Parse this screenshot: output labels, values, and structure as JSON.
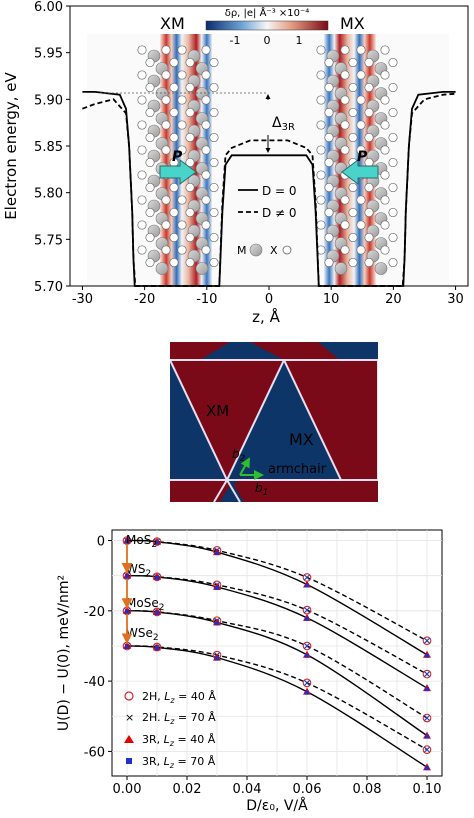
{
  "panel_a": {
    "label_left": "XM",
    "label_right": "MX",
    "colorbar_label": "δρ, |e| Å⁻³ ×10⁻⁴",
    "colorbar_ticks": [
      "-1",
      "0",
      "1"
    ],
    "ylabel": "Electron energy, eV",
    "xlabel": "z, Å",
    "y_ticks": [
      "5.70",
      "5.75",
      "5.80",
      "5.85",
      "5.90",
      "5.95",
      "6.00"
    ],
    "x_ticks": [
      "-30",
      "-20",
      "-10",
      "0",
      "10",
      "20",
      "30"
    ],
    "legend": [
      "D = 0",
      "D ≠ 0"
    ],
    "delta_label": "Δ",
    "delta_sub": "3R",
    "p_label": "P",
    "atom_legend_m": "M",
    "atom_legend_x": "X"
  },
  "panel_b": {
    "label_xm": "XM",
    "label_mx": "MX",
    "label_armchair": "armchair",
    "b1": "b",
    "b1_sub": "1",
    "b2": "b",
    "b2_sub": "2",
    "colors": {
      "dark_red": "#7a0a17",
      "dark_blue": "#0d3567"
    }
  },
  "chart_data": [
    {
      "type": "line",
      "title": "",
      "xlabel": "z, Å",
      "ylabel": "Electron energy, eV",
      "xlim": [
        -32,
        32
      ],
      "ylim": [
        5.7,
        6.0
      ],
      "series": [
        {
          "name": "D = 0",
          "style": "solid",
          "x": [
            -30,
            -28,
            -24,
            -23,
            -22.5,
            -22,
            -21.8,
            -21.6,
            -21.5,
            -8,
            -7.5,
            -7,
            -6,
            6,
            7,
            7.5,
            8,
            21.5,
            21.6,
            21.8,
            22,
            22.5,
            23,
            24,
            28,
            30
          ],
          "y": [
            5.908,
            5.908,
            5.905,
            5.89,
            5.85,
            5.78,
            5.73,
            5.7,
            5.7,
            5.7,
            5.78,
            5.83,
            5.84,
            5.84,
            5.83,
            5.78,
            5.7,
            5.7,
            5.7,
            5.73,
            5.78,
            5.85,
            5.89,
            5.905,
            5.908,
            5.908
          ]
        },
        {
          "name": "D ≠ 0",
          "style": "dashed",
          "x": [
            -30,
            -28,
            -25,
            -23,
            -22.5,
            -22,
            -21.8,
            -21.5,
            -8,
            -7.5,
            -7,
            -6,
            -3,
            3,
            6,
            7,
            7.5,
            8,
            21.5,
            21.8,
            22,
            22.5,
            23,
            25,
            28,
            30
          ],
          "y": [
            5.89,
            5.895,
            5.9,
            5.885,
            5.85,
            5.78,
            5.73,
            5.7,
            5.7,
            5.79,
            5.84,
            5.848,
            5.856,
            5.856,
            5.848,
            5.84,
            5.79,
            5.7,
            5.7,
            5.73,
            5.78,
            5.85,
            5.885,
            5.9,
            5.905,
            5.906
          ]
        }
      ]
    },
    {
      "type": "line",
      "title": "",
      "xlabel": "D/ε₀,  V/Å",
      "ylabel": "U(D) − U(0),  meV/nm²",
      "xlim": [
        -0.005,
        0.105
      ],
      "ylim": [
        -67,
        3
      ],
      "x_ticks": [
        "0.00",
        "0.02",
        "0.04",
        "0.06",
        "0.08",
        "0.10"
      ],
      "y_ticks": [
        "0",
        "-20",
        "-40",
        "-60"
      ],
      "material_labels": [
        {
          "base": "MoS",
          "sub": "2"
        },
        {
          "base": "WS",
          "sub": "2"
        },
        {
          "base": "MoSe",
          "sub": "2"
        },
        {
          "base": "WSe",
          "sub": "2"
        }
      ],
      "legend": [
        "2H, L_z = 40 Å",
        "2H. L_z = 70 Å",
        "3R, L_z = 40 Å",
        "3R, L_z = 70 Å"
      ],
      "legend_parts": [
        {
          "a": "2H, ",
          "L": "L",
          "z": "z",
          "b": " = 40 Å"
        },
        {
          "a": "2H. ",
          "L": "L",
          "z": "z",
          "b": " = 70 Å"
        },
        {
          "a": "3R, ",
          "L": "L",
          "z": "z",
          "b": " = 40 Å"
        },
        {
          "a": "3R, ",
          "L": "L",
          "z": "z",
          "b": " = 70 Å"
        }
      ],
      "x": [
        0.0,
        0.01,
        0.03,
        0.06,
        0.1
      ],
      "series": [
        {
          "name": "MoS2 2H",
          "values": [
            0,
            -0.3,
            -2.8,
            -10.5,
            -28.5
          ]
        },
        {
          "name": "MoS2 3R",
          "values": [
            0,
            -0.35,
            -3.3,
            -12.5,
            -32.5
          ]
        },
        {
          "name": "WS2 2H",
          "values": [
            -10,
            -10.3,
            -12.6,
            -19.8,
            -38.0
          ]
        },
        {
          "name": "WS2 3R",
          "values": [
            -10,
            -10.35,
            -13.2,
            -22.0,
            -42.0
          ]
        },
        {
          "name": "MoSe2 2H",
          "values": [
            -20,
            -20.3,
            -22.8,
            -30.0,
            -50.5
          ]
        },
        {
          "name": "MoSe2 3R",
          "values": [
            -20,
            -20.35,
            -23.3,
            -32.5,
            -55.5
          ]
        },
        {
          "name": "WSe2 2H",
          "values": [
            -30,
            -30.3,
            -32.6,
            -40.5,
            -59.5
          ]
        },
        {
          "name": "WSe2 3R",
          "values": [
            -30,
            -30.4,
            -33.3,
            -43.0,
            -64.5
          ]
        }
      ],
      "colors": {
        "circle": "#d62728",
        "cross": "#1f3fb4",
        "triangle": "#e00000",
        "square": "#1f2fd0",
        "arrow": "#e07020"
      }
    }
  ]
}
